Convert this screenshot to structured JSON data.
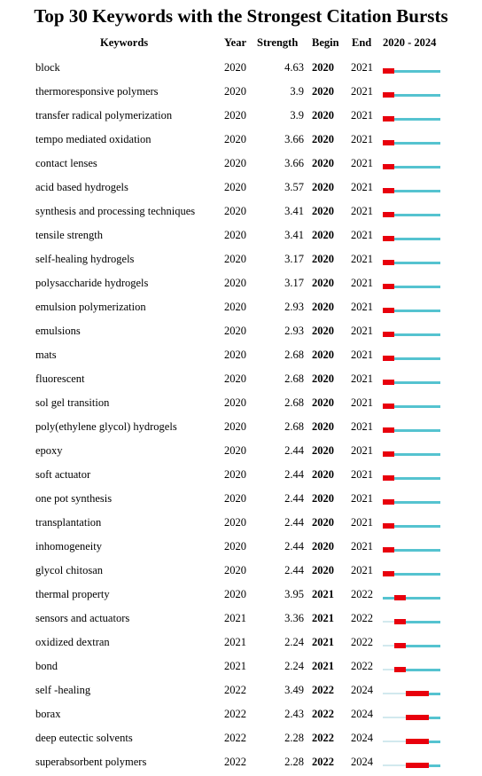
{
  "title": "Top 30 Keywords with the Strongest Citation Bursts",
  "headers": {
    "keywords": "Keywords",
    "year": "Year",
    "strength": "Strength",
    "begin": "Begin",
    "end": "End",
    "range": "2020 - 2024"
  },
  "colors": {
    "burst": "#e8000d",
    "active": "#55c3d0",
    "before": "#d2e9ee"
  },
  "chart_data": {
    "type": "table",
    "range_start": 2020,
    "range_end": 2024,
    "rows": [
      {
        "keyword": "block",
        "year": "2020",
        "strength": "4.63",
        "begin": "2020",
        "end": "2021"
      },
      {
        "keyword": "thermoresponsive polymers",
        "year": "2020",
        "strength": "3.9",
        "begin": "2020",
        "end": "2021"
      },
      {
        "keyword": "transfer radical polymerization",
        "year": "2020",
        "strength": "3.9",
        "begin": "2020",
        "end": "2021"
      },
      {
        "keyword": "tempo mediated oxidation",
        "year": "2020",
        "strength": "3.66",
        "begin": "2020",
        "end": "2021"
      },
      {
        "keyword": "contact lenses",
        "year": "2020",
        "strength": "3.66",
        "begin": "2020",
        "end": "2021"
      },
      {
        "keyword": "acid based hydrogels",
        "year": "2020",
        "strength": "3.57",
        "begin": "2020",
        "end": "2021"
      },
      {
        "keyword": "synthesis and processing techniques",
        "year": "2020",
        "strength": "3.41",
        "begin": "2020",
        "end": "2021"
      },
      {
        "keyword": "tensile strength",
        "year": "2020",
        "strength": "3.41",
        "begin": "2020",
        "end": "2021"
      },
      {
        "keyword": "self-healing hydrogels",
        "year": "2020",
        "strength": "3.17",
        "begin": "2020",
        "end": "2021"
      },
      {
        "keyword": "polysaccharide hydrogels",
        "year": "2020",
        "strength": "3.17",
        "begin": "2020",
        "end": "2021"
      },
      {
        "keyword": "emulsion polymerization",
        "year": "2020",
        "strength": "2.93",
        "begin": "2020",
        "end": "2021"
      },
      {
        "keyword": "emulsions",
        "year": "2020",
        "strength": "2.93",
        "begin": "2020",
        "end": "2021"
      },
      {
        "keyword": "mats",
        "year": "2020",
        "strength": "2.68",
        "begin": "2020",
        "end": "2021"
      },
      {
        "keyword": "fluorescent",
        "year": "2020",
        "strength": "2.68",
        "begin": "2020",
        "end": "2021"
      },
      {
        "keyword": "sol gel transition",
        "year": "2020",
        "strength": "2.68",
        "begin": "2020",
        "end": "2021"
      },
      {
        "keyword": "poly(ethylene glycol) hydrogels",
        "year": "2020",
        "strength": "2.68",
        "begin": "2020",
        "end": "2021"
      },
      {
        "keyword": "epoxy",
        "year": "2020",
        "strength": "2.44",
        "begin": "2020",
        "end": "2021"
      },
      {
        "keyword": "soft actuator",
        "year": "2020",
        "strength": "2.44",
        "begin": "2020",
        "end": "2021"
      },
      {
        "keyword": "one pot synthesis",
        "year": "2020",
        "strength": "2.44",
        "begin": "2020",
        "end": "2021"
      },
      {
        "keyword": "transplantation",
        "year": "2020",
        "strength": "2.44",
        "begin": "2020",
        "end": "2021"
      },
      {
        "keyword": "inhomogeneity",
        "year": "2020",
        "strength": "2.44",
        "begin": "2020",
        "end": "2021"
      },
      {
        "keyword": "glycol chitosan",
        "year": "2020",
        "strength": "2.44",
        "begin": "2020",
        "end": "2021"
      },
      {
        "keyword": "thermal property",
        "year": "2020",
        "strength": "3.95",
        "begin": "2021",
        "end": "2022"
      },
      {
        "keyword": "sensors and actuators",
        "year": "2021",
        "strength": "3.36",
        "begin": "2021",
        "end": "2022"
      },
      {
        "keyword": "oxidized dextran",
        "year": "2021",
        "strength": "2.24",
        "begin": "2021",
        "end": "2022"
      },
      {
        "keyword": "bond",
        "year": "2021",
        "strength": "2.24",
        "begin": "2021",
        "end": "2022"
      },
      {
        "keyword": "self -healing",
        "year": "2022",
        "strength": "3.49",
        "begin": "2022",
        "end": "2024"
      },
      {
        "keyword": "borax",
        "year": "2022",
        "strength": "2.43",
        "begin": "2022",
        "end": "2024"
      },
      {
        "keyword": "deep eutectic solvents",
        "year": "2022",
        "strength": "2.28",
        "begin": "2022",
        "end": "2024"
      },
      {
        "keyword": "superabsorbent polymers",
        "year": "2022",
        "strength": "2.28",
        "begin": "2022",
        "end": "2024"
      }
    ]
  }
}
